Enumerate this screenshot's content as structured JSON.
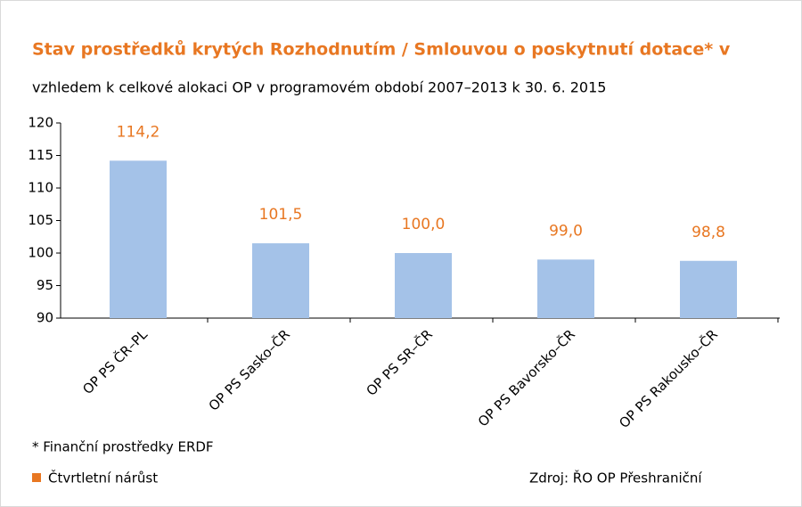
{
  "chart_data": {
    "type": "bar",
    "title": "Stav prostředků krytých Rozhodnutím / Smlouvou o poskytnutí dotace* v",
    "subtitle": "vzhledem k celkové alokaci OP v programovém období 2007–2013 k 30. 6. 2015",
    "categories": [
      "OP PS ČR–PL",
      "OP PS Sasko–ČR",
      "OP PS SR–ČR",
      "OP PS Bavorsko–ČR",
      "OP PS Rakousko–ČR"
    ],
    "values": [
      114.2,
      101.5,
      100.0,
      99.0,
      98.8
    ],
    "value_labels": [
      "114,2",
      "101,5",
      "100,0",
      "99,0",
      "98,8"
    ],
    "color": "#a4c2e8",
    "ylim": [
      90,
      120
    ],
    "yticks": [
      90,
      95,
      100,
      105,
      110,
      115,
      120
    ],
    "footnote": "* Finanční prostředky ERDF",
    "legend": {
      "label": "Čtvrtletní nárůst",
      "color": "#e87722"
    },
    "source": "Zdroj: ŘO OP Přeshraniční"
  }
}
